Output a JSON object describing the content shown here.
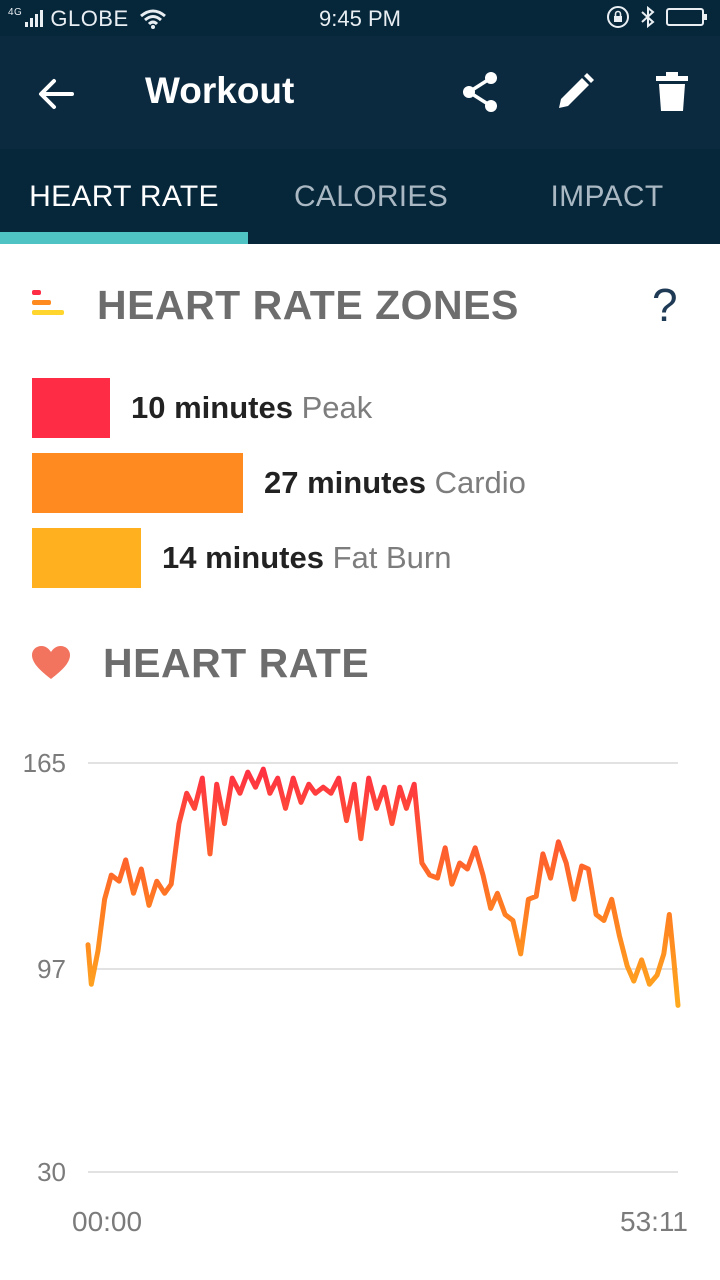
{
  "status_bar": {
    "network": "4G",
    "carrier": "GLOBE",
    "time": "9:45 PM"
  },
  "app_bar": {
    "title": "Workout"
  },
  "tabs": [
    {
      "label": "HEART RATE",
      "active": true
    },
    {
      "label": "CALORIES",
      "active": false
    },
    {
      "label": "IMPACT",
      "active": false
    }
  ],
  "zones": {
    "title": "HEART RATE ZONES",
    "help": "?",
    "items": [
      {
        "minutes": "10 minutes",
        "name": "Peak",
        "color": "#ff2c45",
        "value": 10
      },
      {
        "minutes": "27 minutes",
        "name": "Cardio",
        "color": "#ff8a1f",
        "value": 27
      },
      {
        "minutes": "14 minutes",
        "name": "Fat Burn",
        "color": "#ffb01e",
        "value": 14
      }
    ]
  },
  "heart_rate": {
    "title": "HEART RATE"
  },
  "colors": {
    "accent": "#4fc3c3",
    "header_bg": "#0b2a40",
    "status_bg": "#06263a",
    "heart": "#f2735e"
  },
  "chart_data": {
    "type": "line",
    "y_ticks": [
      "165",
      "97",
      "30"
    ],
    "x_ticks": [
      "00:00",
      "53:11"
    ],
    "ylim": [
      30,
      165
    ],
    "xlim": [
      0,
      53.18
    ],
    "grid": true,
    "series": [
      {
        "x": [
          0,
          0.3,
          0.9,
          1.5,
          2.1,
          2.8,
          3.4,
          4.1,
          4.8,
          5.5,
          6.2,
          6.9,
          7.5,
          8.2,
          8.9,
          9.6,
          10.3,
          11.0,
          11.6,
          12.3,
          13.0,
          13.7,
          14.4,
          15.1,
          15.8,
          16.4,
          17.1,
          17.8,
          18.5,
          19.2,
          19.9,
          20.5,
          21.2,
          21.9,
          22.6,
          23.3,
          24.0,
          24.6,
          25.3,
          26.0,
          26.7,
          27.4,
          28.1,
          28.7,
          29.4,
          30.1,
          30.8,
          31.5,
          32.2,
          32.8,
          33.5,
          34.2,
          34.9,
          35.6,
          36.3,
          36.9,
          37.6,
          38.3,
          39.0,
          39.7,
          40.4,
          41.0,
          41.7,
          42.4,
          43.1,
          43.8,
          44.5,
          45.1,
          45.8,
          46.5,
          47.2,
          47.9,
          48.6,
          49.2,
          49.9,
          50.6,
          51.3,
          51.9,
          52.4,
          52.8,
          53.18
        ],
        "y": [
          105,
          92,
          103,
          120,
          128,
          126,
          133,
          122,
          130,
          118,
          126,
          122,
          125,
          145,
          155,
          150,
          160,
          135,
          158,
          145,
          160,
          155,
          162,
          157,
          163,
          155,
          160,
          150,
          160,
          152,
          158,
          155,
          157,
          155,
          160,
          146,
          158,
          140,
          160,
          150,
          157,
          145,
          157,
          150,
          158,
          132,
          128,
          127,
          137,
          125,
          132,
          130,
          137,
          128,
          117,
          122,
          115,
          113,
          102,
          120,
          121,
          135,
          127,
          139,
          132,
          120,
          131,
          130,
          115,
          113,
          120,
          108,
          98,
          93,
          100,
          92,
          95,
          102,
          115,
          100,
          85
        ]
      }
    ]
  }
}
